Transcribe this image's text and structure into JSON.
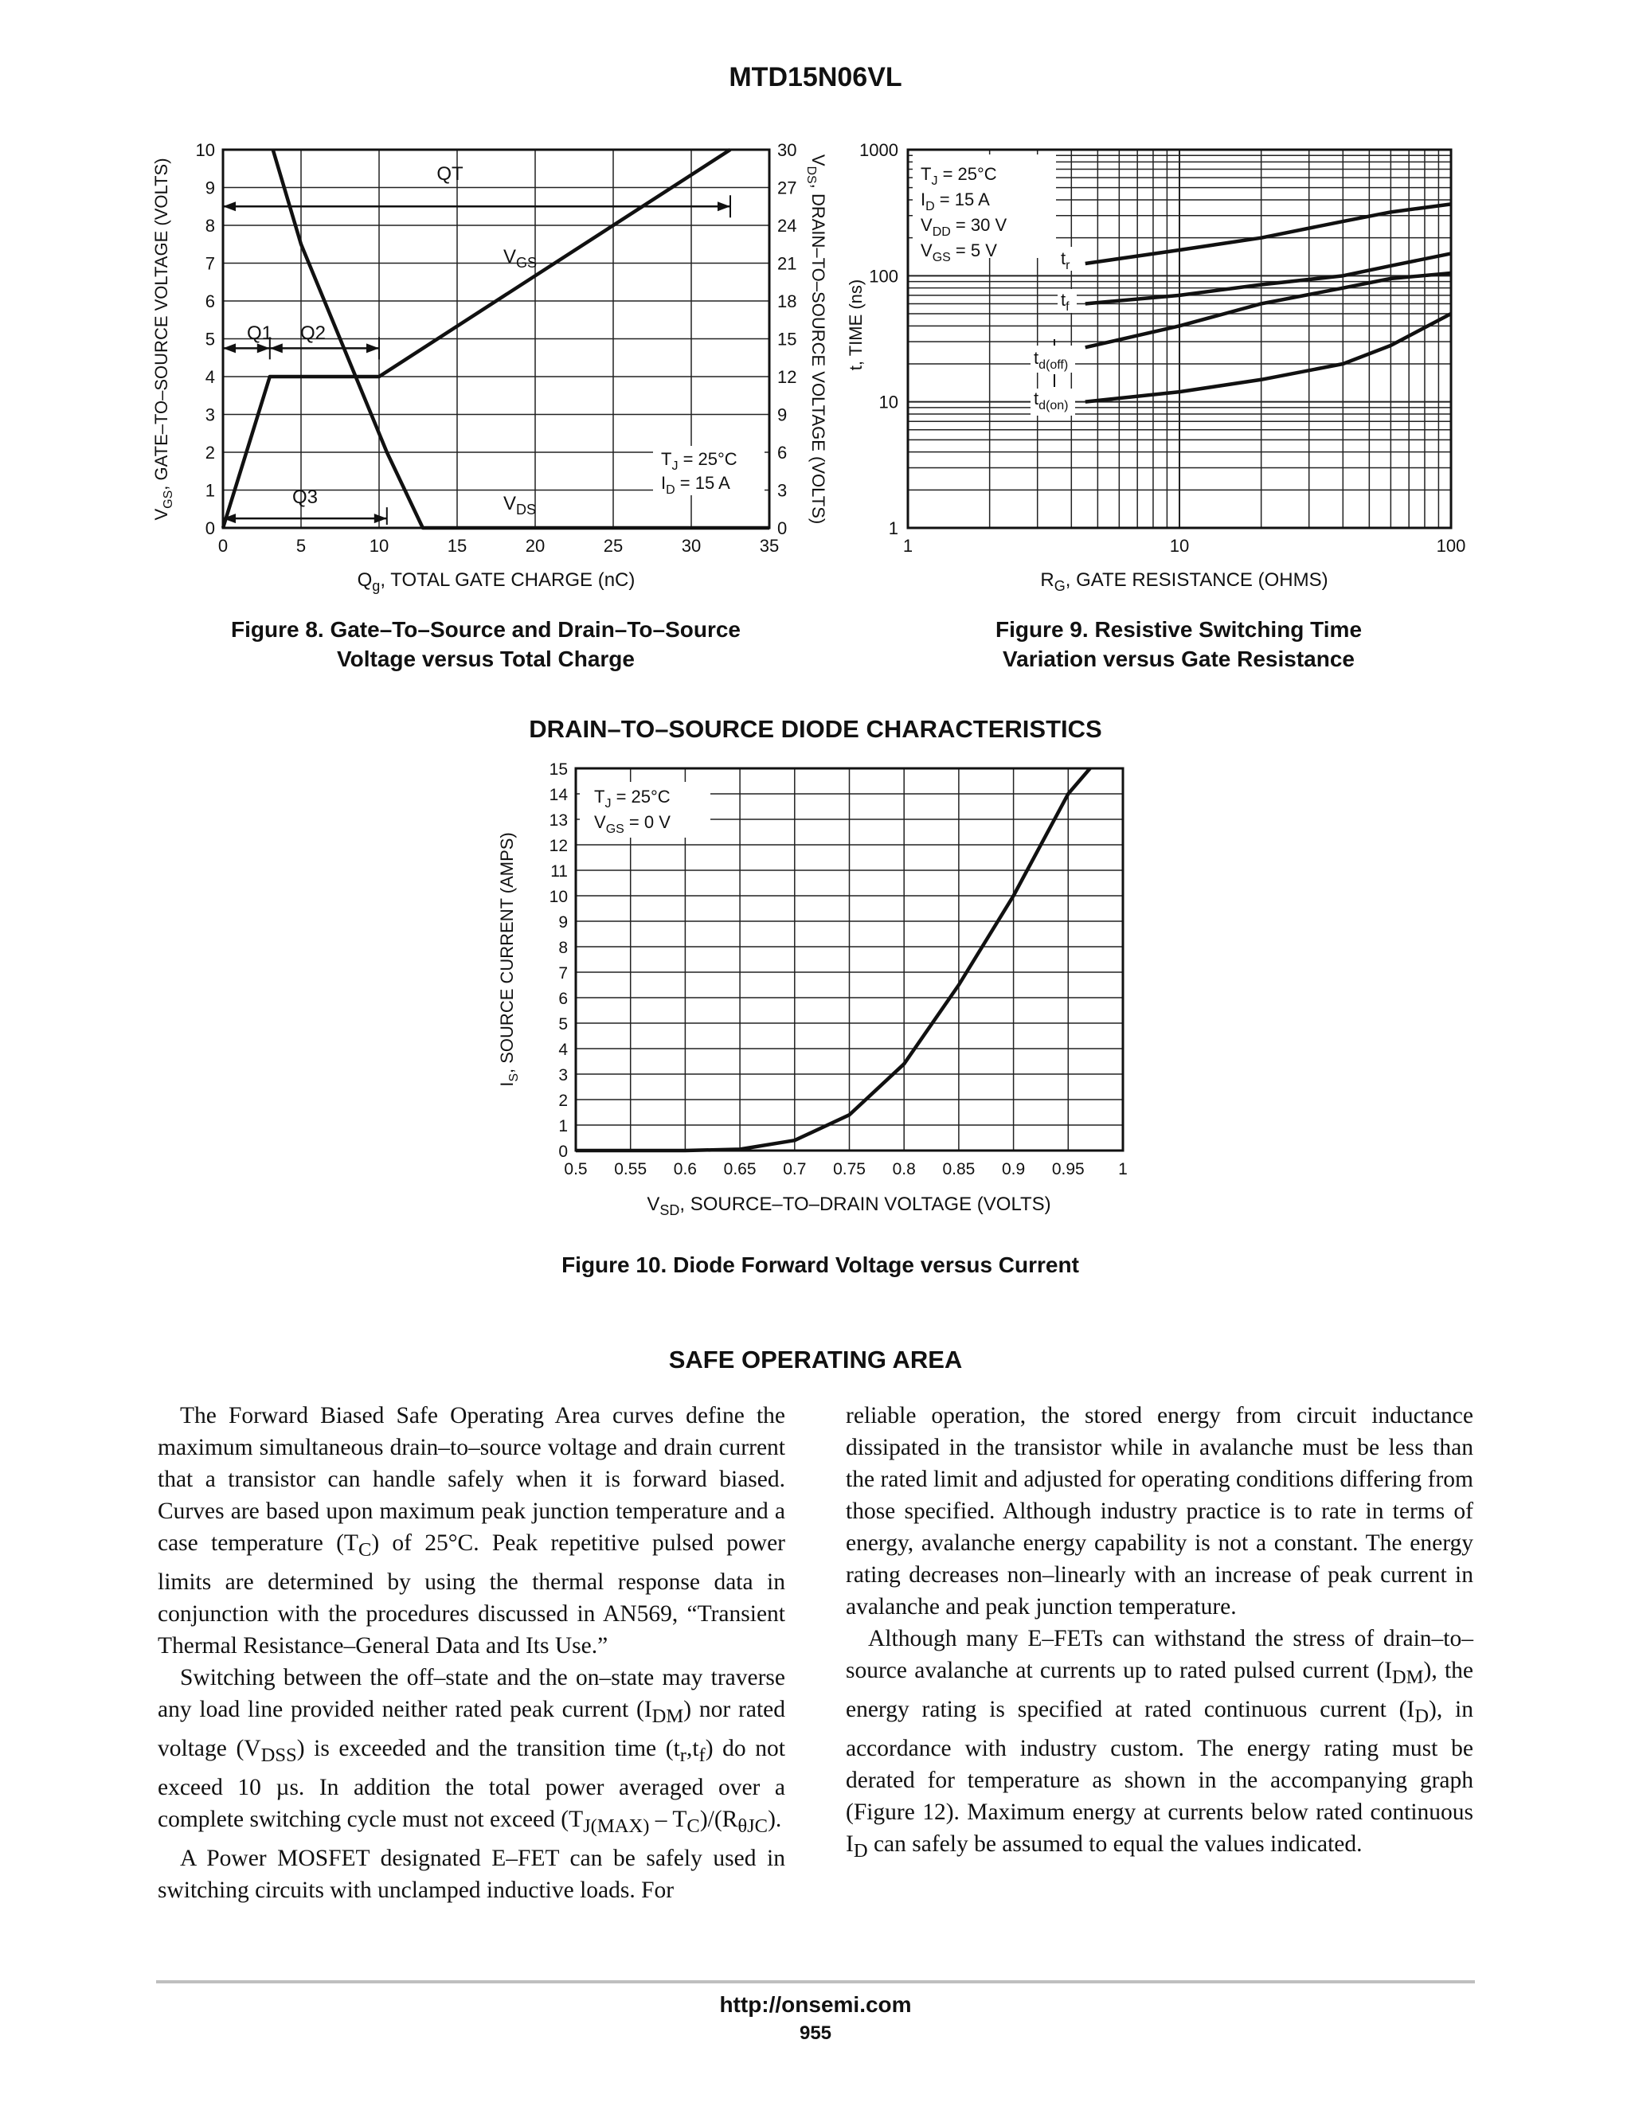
{
  "header": {
    "part_number": "MTD15N06VL"
  },
  "fig8": {
    "caption_line1": "Figure 8. Gate–To–Source and Drain–To–Source",
    "caption_line2": "Voltage versus Total Charge",
    "xlabel": "Q",
    "xlabel_sub": "g",
    "xlabel_rest": ", TOTAL GATE CHARGE (nC)",
    "ylabel_left": "V",
    "ylabel_left_sub": "GS",
    "ylabel_left_rest": ", GATE–TO–SOURCE VOLTAGE (VOLTS)",
    "ylabel_right": "V",
    "ylabel_right_sub": "DS",
    "ylabel_right_rest": ", DRAIN–TO–SOURCE VOLTAGE (VOLTS)",
    "x_ticks": [
      "0",
      "5",
      "10",
      "15",
      "20",
      "25",
      "30",
      "35"
    ],
    "y_left_ticks": [
      "0",
      "1",
      "2",
      "3",
      "4",
      "5",
      "6",
      "7",
      "8",
      "9",
      "10"
    ],
    "y_right_ticks": [
      "0",
      "3",
      "6",
      "9",
      "12",
      "15",
      "18",
      "21",
      "24",
      "27",
      "30"
    ],
    "label_qt": "QT",
    "label_q1": "Q1",
    "label_q2": "Q2",
    "label_q3": "Q3",
    "label_vgs": "V",
    "label_vgs_sub": "GS",
    "label_vds": "V",
    "label_vds_sub": "DS",
    "cond_tj": "T",
    "cond_tj_sub": "J",
    "cond_tj_rest": " = 25°C",
    "cond_id": "I",
    "cond_id_sub": "D",
    "cond_id_rest": " = 15 A"
  },
  "fig9": {
    "caption_line1": "Figure 9. Resistive Switching Time",
    "caption_line2": "Variation versus Gate Resistance",
    "xlabel": "R",
    "xlabel_sub": "G",
    "xlabel_rest": ", GATE RESISTANCE (OHMS)",
    "ylabel": "t, TIME (ns)",
    "x_ticks": [
      "1",
      "10",
      "100"
    ],
    "y_ticks": [
      "1",
      "10",
      "100",
      "1000"
    ],
    "cond1": "T",
    "cond1_sub": "J",
    "cond1_rest": " = 25°C",
    "cond2": "I",
    "cond2_sub": "D",
    "cond2_rest": " = 15 A",
    "cond3": "V",
    "cond3_sub": "DD",
    "cond3_rest": " = 30 V",
    "cond4": "V",
    "cond4_sub": "GS",
    "cond4_rest": " = 5 V",
    "lbl_tr": "t",
    "lbl_tr_sub": "r",
    "lbl_tf": "t",
    "lbl_tf_sub": "f",
    "lbl_tdoff": "t",
    "lbl_tdoff_sub": "d(off)",
    "lbl_tdon": "t",
    "lbl_tdon_sub": "d(on)"
  },
  "section1": {
    "title": "DRAIN–TO–SOURCE DIODE CHARACTERISTICS"
  },
  "fig10": {
    "caption": "Figure 10. Diode Forward Voltage versus Current",
    "xlabel": "V",
    "xlabel_sub": "SD",
    "xlabel_rest": ", SOURCE–TO–DRAIN VOLTAGE (VOLTS)",
    "ylabel": "I",
    "ylabel_sub": "S",
    "ylabel_rest": ", SOURCE CURRENT (AMPS)",
    "x_ticks": [
      "0.5",
      "0.55",
      "0.6",
      "0.65",
      "0.7",
      "0.75",
      "0.8",
      "0.85",
      "0.9",
      "0.95",
      "1"
    ],
    "y_ticks": [
      "0",
      "1",
      "2",
      "3",
      "4",
      "5",
      "6",
      "7",
      "8",
      "9",
      "10",
      "11",
      "12",
      "13",
      "14",
      "15"
    ],
    "cond1": "T",
    "cond1_sub": "J",
    "cond1_rest": " = 25°C",
    "cond2": "V",
    "cond2_sub": "GS",
    "cond2_rest": " = 0 V"
  },
  "chart_data": [
    {
      "type": "line",
      "chart": "fig8",
      "xlim": [
        0,
        35
      ],
      "ylim_left": [
        0,
        10
      ],
      "ylim_right": [
        0,
        30
      ],
      "series": [
        {
          "name": "VGS",
          "axis": "left",
          "x": [
            0,
            3,
            10,
            32.5
          ],
          "y": [
            0,
            4,
            4,
            10
          ]
        },
        {
          "name": "VDS",
          "axis": "right",
          "x": [
            3.2,
            5,
            10.5,
            12.8,
            35
          ],
          "y": [
            30,
            22.5,
            6,
            0,
            0
          ]
        }
      ]
    },
    {
      "type": "line",
      "chart": "fig9",
      "xscale": "log",
      "yscale": "log",
      "xlim": [
        1,
        100
      ],
      "ylim": [
        1,
        1000
      ],
      "series": [
        {
          "name": "tr",
          "x": [
            4.5,
            10,
            20,
            40,
            60,
            100
          ],
          "y": [
            125,
            160,
            200,
            270,
            320,
            370
          ]
        },
        {
          "name": "tf",
          "x": [
            4.5,
            10,
            20,
            40,
            60,
            100
          ],
          "y": [
            60,
            70,
            85,
            100,
            120,
            150
          ]
        },
        {
          "name": "td(off)",
          "x": [
            4.5,
            10,
            20,
            40,
            60,
            100
          ],
          "y": [
            27,
            40,
            60,
            80,
            95,
            105
          ]
        },
        {
          "name": "td(on)",
          "x": [
            4.5,
            10,
            20,
            40,
            60,
            100
          ],
          "y": [
            10,
            12,
            15,
            20,
            28,
            50
          ]
        }
      ]
    },
    {
      "type": "line",
      "chart": "fig10",
      "xlim": [
        0.5,
        1
      ],
      "ylim": [
        0,
        15
      ],
      "series": [
        {
          "name": "IS",
          "x": [
            0.5,
            0.6,
            0.65,
            0.7,
            0.75,
            0.8,
            0.85,
            0.9,
            0.95,
            0.97
          ],
          "y": [
            0,
            0,
            0.05,
            0.4,
            1.4,
            3.4,
            6.5,
            10,
            14,
            15
          ]
        }
      ]
    }
  ],
  "section2": {
    "title": "SAFE OPERATING AREA"
  },
  "text": {
    "p1": "The Forward Biased Safe Operating Area curves define the maximum simultaneous drain–to–source voltage and drain current that a transistor can handle safely when it is forward biased. Curves are based upon maximum peak junction temperature and a case temperature (T",
    "p1_sub": "C",
    "p1_rest": ") of 25°C. Peak repetitive pulsed power limits are determined by using the thermal response data in conjunction with the procedures discussed in AN569, “Transient Thermal Resistance–General Data and Its Use.”",
    "p2_a": "Switching between the off–state and the on–state may traverse any load line provided neither rated peak current (I",
    "p2_sub1": "DM",
    "p2_b": ") nor rated voltage (V",
    "p2_sub2": "DSS",
    "p2_c": ") is exceeded and the transition time (t",
    "p2_sub3": "r",
    "p2_d": ",t",
    "p2_sub4": "f",
    "p2_e": ") do not exceed 10 µs. In addition the total power averaged over a complete switching cycle must not exceed (T",
    "p2_sub5": "J(MAX)",
    "p2_f": " – T",
    "p2_sub6": "C",
    "p2_g": ")/(R",
    "p2_sub7": "θJC",
    "p2_h": ").",
    "p3": "A Power MOSFET designated E–FET can be safely used in switching circuits with unclamped inductive loads. For reliable operation, the stored energy from circuit inductance dissipated in the transistor while in avalanche must be less than the rated limit and adjusted for operating conditions differing from those specified. Although industry practice is to rate in terms of energy, avalanche energy capability is not a constant. The energy rating decreases non–linearly with an increase of peak current in avalanche and peak junction temperature.",
    "p4_a": "Although many E–FETs can withstand the stress of drain–to–source avalanche at currents up to rated pulsed current (I",
    "p4_sub1": "DM",
    "p4_b": "), the energy rating is specified at rated continuous current (I",
    "p4_sub2": "D",
    "p4_c": "), in accordance with industry custom. The energy rating must be derated for temperature as shown in the accompanying graph (Figure 12). Maximum energy at currents below rated continuous I",
    "p4_sub3": "D",
    "p4_d": " can safely be assumed to equal the values indicated."
  },
  "footer": {
    "url": "http://onsemi.com",
    "page": "955"
  }
}
